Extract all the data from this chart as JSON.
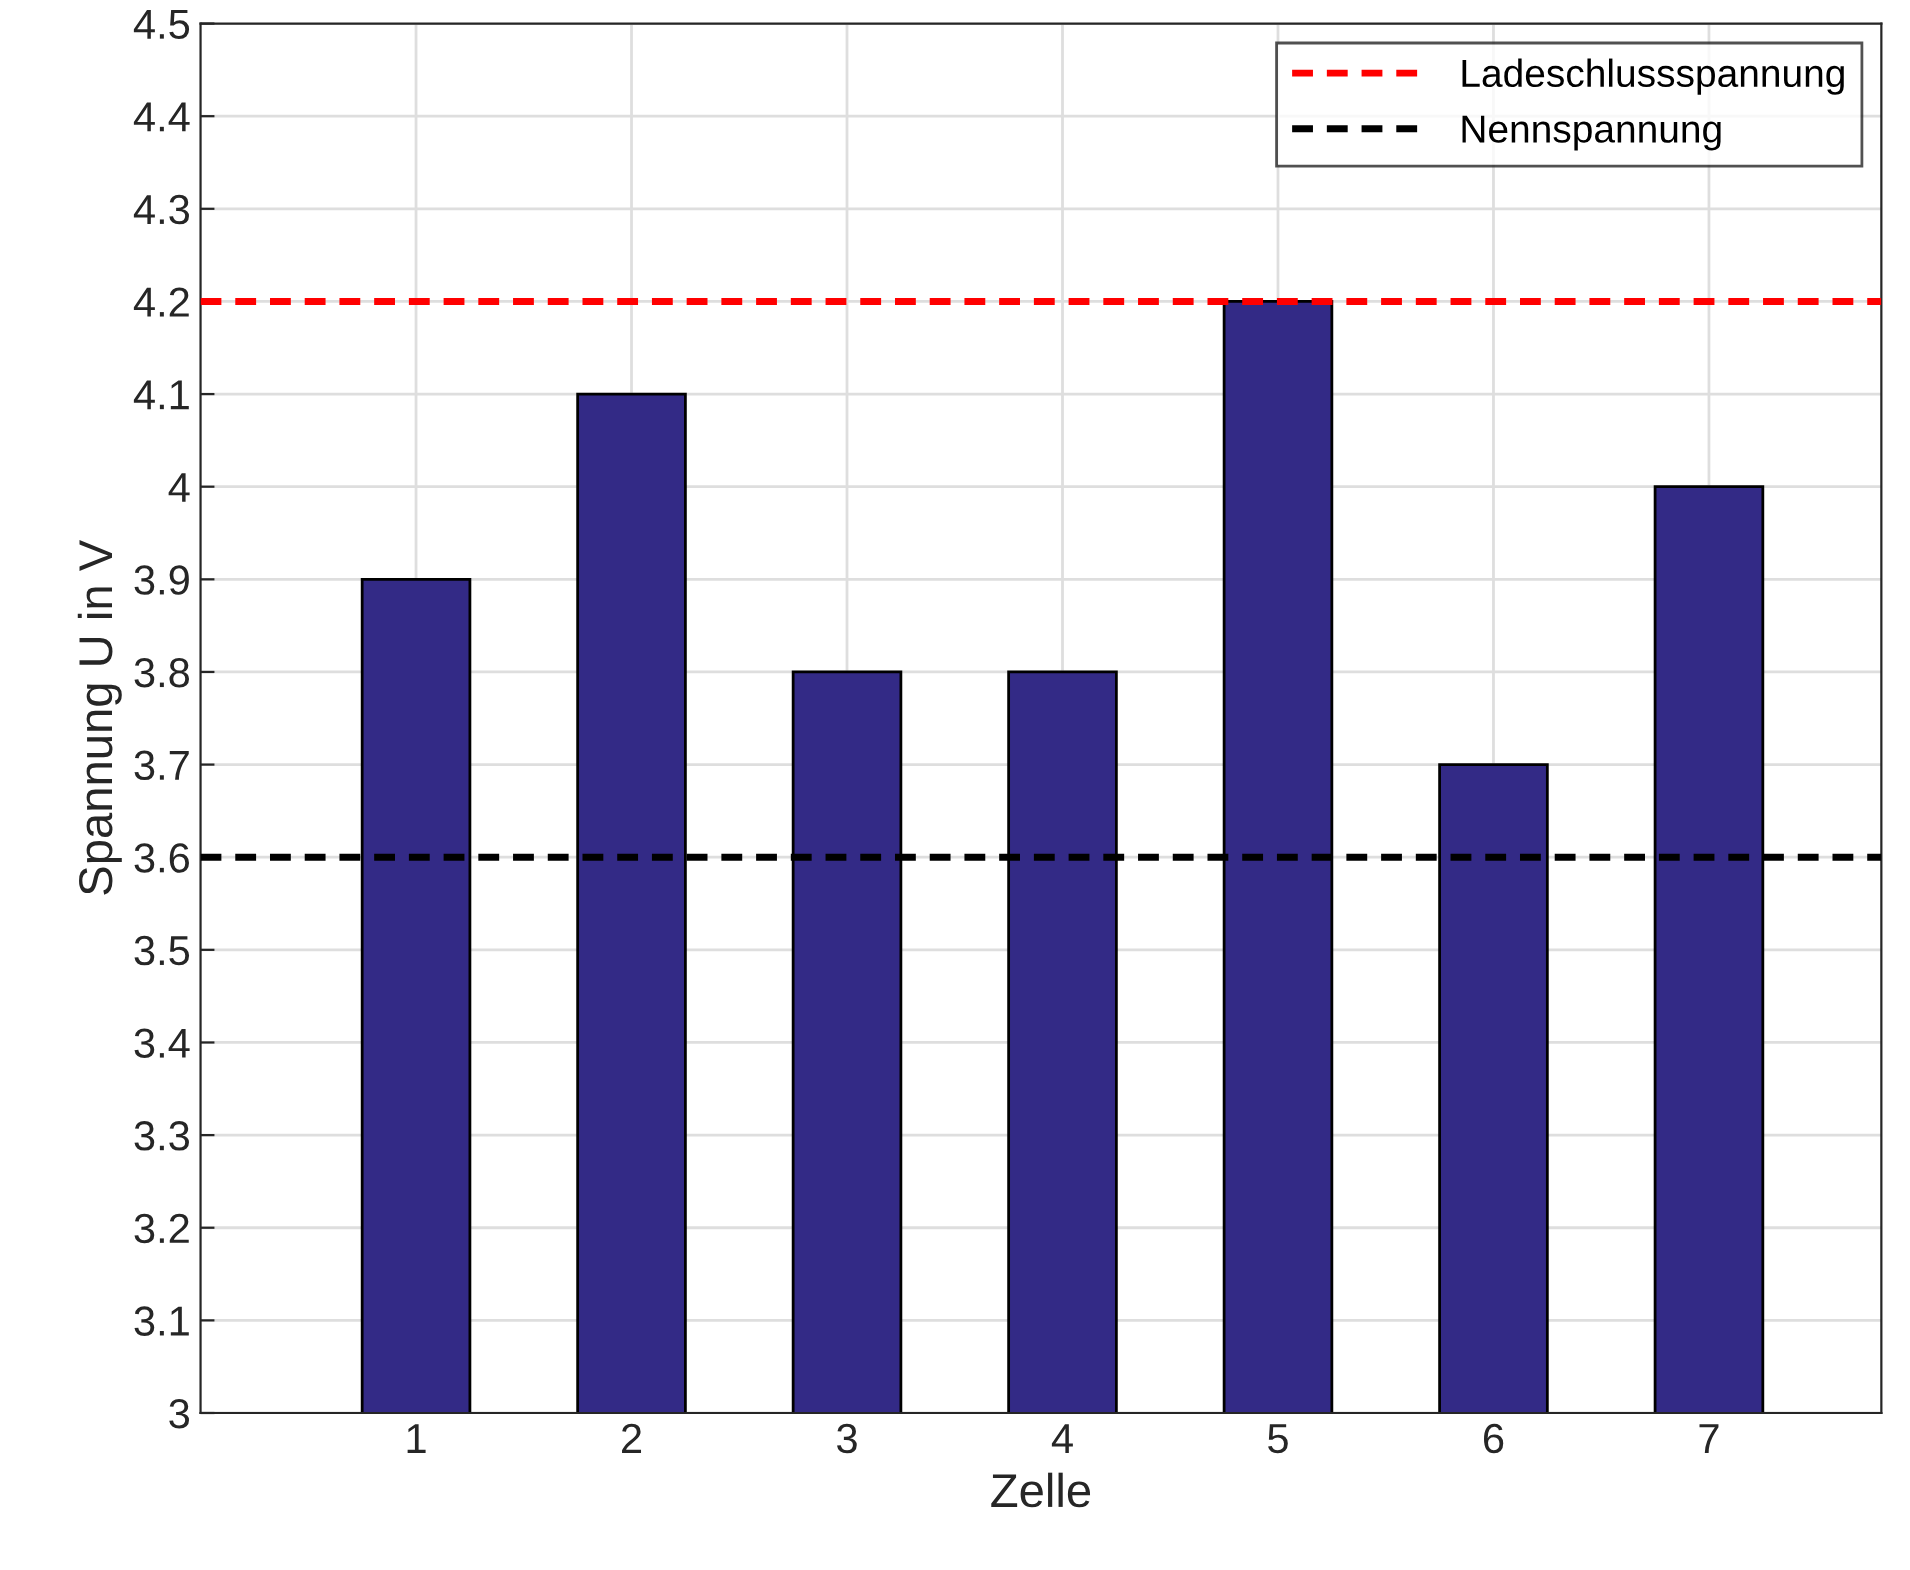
{
  "chart_data": {
    "type": "bar",
    "xlabel": "Zelle",
    "ylabel": "Spannung U in V",
    "categories": [
      "1",
      "2",
      "3",
      "4",
      "5",
      "6",
      "7"
    ],
    "series": [
      {
        "color": "#332a86",
        "values": [
          3.9,
          4.1,
          3.8,
          3.8,
          4.2,
          3.7,
          4.0
        ]
      }
    ],
    "ylim": [
      3,
      4.5
    ],
    "yticks": [
      3,
      3.1,
      3.2,
      3.3,
      3.4,
      3.5,
      3.6,
      3.7,
      3.8,
      3.9,
      4,
      4.1,
      4.2,
      4.3,
      4.4,
      4.5
    ],
    "ref_lines": [
      {
        "axis": "y",
        "value": 4.2,
        "label": "Ladeschlussspannung",
        "color": "#ff0000",
        "line_style": "dashed"
      },
      {
        "axis": "y",
        "value": 3.6,
        "label": "Nennspannung",
        "color": "#000000",
        "line_style": "dashed"
      }
    ],
    "grid": true,
    "legend": "top right"
  }
}
